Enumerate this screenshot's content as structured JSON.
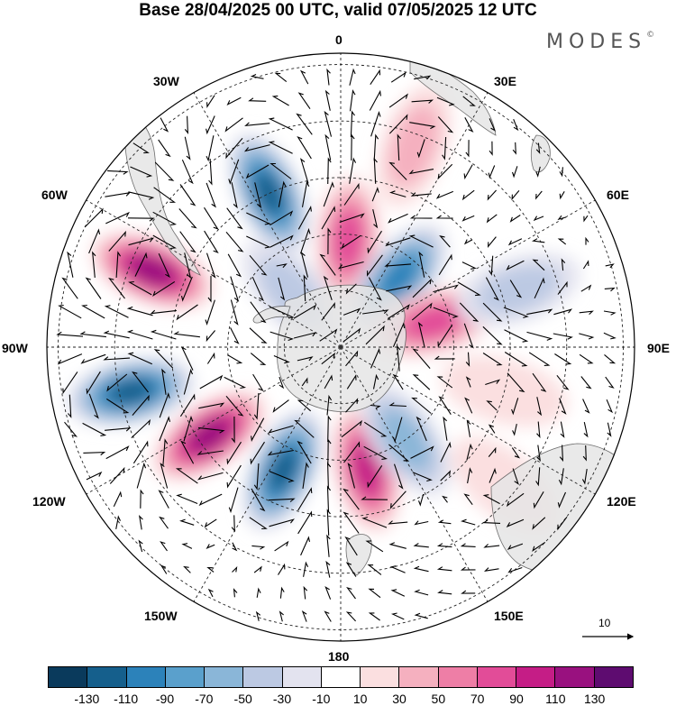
{
  "title": "Base 28/04/2025 00 UTC, valid 07/05/2025 12 UTC",
  "brand": {
    "name": "MODES",
    "mark": "©"
  },
  "longitude_labels": [
    "0",
    "30E",
    "60E",
    "90E",
    "120E",
    "150E",
    "180",
    "150W",
    "120W",
    "90W",
    "60W",
    "30W"
  ],
  "reference_vector": {
    "label": "10"
  },
  "colorbar": {
    "colors": [
      "#0a3a5c",
      "#155f8c",
      "#2c82ba",
      "#5aa0cc",
      "#8ab6d8",
      "#bcc9e3",
      "#e3e3ef",
      "#ffffff",
      "#fbdfe0",
      "#f5b0bf",
      "#ee7ea6",
      "#e24c98",
      "#c51d86",
      "#99117f",
      "#5e0c70"
    ],
    "tick_labels": [
      "-130",
      "-110",
      "-90",
      "-70",
      "-50",
      "-30",
      "-10",
      "10",
      "30",
      "50",
      "70",
      "90",
      "110",
      "130"
    ]
  },
  "anomalies": [
    {
      "sign": "neg",
      "level": 6,
      "lon": -25,
      "colat": 30
    },
    {
      "sign": "pos",
      "level": 6,
      "lon": -68,
      "colat": 36
    },
    {
      "sign": "neg",
      "level": 6,
      "lon": -102,
      "colat": 38
    },
    {
      "sign": "pos",
      "level": 6,
      "lon": -124,
      "colat": 28
    },
    {
      "sign": "neg",
      "level": 6,
      "lon": -155,
      "colat": 24
    },
    {
      "sign": "pos",
      "level": 5,
      "lon": 168,
      "colat": 22
    },
    {
      "sign": "neg",
      "level": 3,
      "lon": 145,
      "colat": 20
    },
    {
      "sign": "pos",
      "level": 4,
      "lon": 4,
      "colat": 19
    },
    {
      "sign": "neg",
      "level": 5,
      "lon": 40,
      "colat": 16
    },
    {
      "sign": "pos",
      "level": 4,
      "lon": 75,
      "colat": 17
    },
    {
      "sign": "neg",
      "level": 2,
      "lon": 72,
      "colat": 33
    },
    {
      "sign": "pos",
      "level": 2,
      "lon": 20,
      "colat": 38
    },
    {
      "sign": "pos",
      "level": 1,
      "lon": 105,
      "colat": 30
    },
    {
      "sign": "pos",
      "level": 1,
      "lon": 130,
      "colat": 38
    },
    {
      "sign": "neg",
      "level": 2,
      "lon": -42,
      "colat": 13
    }
  ]
}
